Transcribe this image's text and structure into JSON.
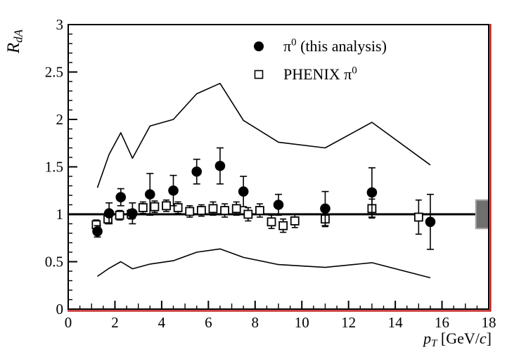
{
  "chart_data": {
    "type": "scatter",
    "title": "",
    "xlabel": "p_T [GeV/c]",
    "ylabel": "R_dA",
    "xlim": [
      0,
      18
    ],
    "ylim": [
      0,
      3
    ],
    "grid": false,
    "legend_position": "top-center",
    "axes": {
      "x": {
        "major_tick_values": [
          0,
          2,
          4,
          6,
          8,
          10,
          12,
          14,
          16,
          18
        ],
        "major_tick_labels": [
          "0",
          "2",
          "4",
          "6",
          "8",
          "10",
          "12",
          "14",
          "16",
          "18"
        ],
        "minor_step": 0.5,
        "medium_step": 1
      },
      "y": {
        "major_tick_values": [
          0,
          0.5,
          1,
          1.5,
          2,
          2.5,
          3
        ],
        "major_tick_labels": [
          "0",
          "0.5",
          "1",
          "1.5",
          "2",
          "2.5",
          "3"
        ],
        "minor_step": 0.1
      }
    },
    "series": [
      {
        "name": "pi0 (this analysis)",
        "marker": "filled-circle",
        "x": [
          1.25,
          1.75,
          2.25,
          2.75,
          3.5,
          4.5,
          5.5,
          6.5,
          7.5,
          9.0,
          11.0,
          13.0,
          15.5
        ],
        "y": [
          0.82,
          1.01,
          1.18,
          1.01,
          1.21,
          1.25,
          1.45,
          1.51,
          1.24,
          1.1,
          1.06,
          1.23,
          0.92
        ],
        "yerr": [
          0.06,
          0.11,
          0.09,
          0.11,
          0.22,
          0.16,
          0.13,
          0.19,
          0.16,
          0.11,
          0.18,
          0.26,
          0.29
        ]
      },
      {
        "name": "PHENIX pi0",
        "marker": "open-square",
        "x": [
          1.2,
          1.7,
          2.2,
          2.7,
          3.2,
          3.7,
          4.2,
          4.7,
          5.2,
          5.7,
          6.2,
          6.7,
          7.2,
          7.7,
          8.2,
          8.7,
          9.2,
          9.7,
          11.0,
          13.0,
          15.0
        ],
        "y": [
          0.89,
          0.95,
          0.99,
          1.0,
          1.07,
          1.08,
          1.09,
          1.07,
          1.03,
          1.04,
          1.06,
          1.04,
          1.06,
          1.0,
          1.04,
          0.92,
          0.88,
          0.93,
          0.95,
          1.06,
          0.97
        ],
        "yerr": [
          0.05,
          0.05,
          0.05,
          0.05,
          0.06,
          0.06,
          0.06,
          0.06,
          0.06,
          0.06,
          0.07,
          0.07,
          0.07,
          0.07,
          0.07,
          0.07,
          0.07,
          0.07,
          0.08,
          0.1,
          0.18
        ]
      }
    ],
    "curves": [
      {
        "name": "systematic-band-upper",
        "x": [
          1.25,
          1.75,
          2.25,
          2.75,
          3.5,
          4.5,
          5.5,
          6.5,
          7.5,
          9.0,
          11.0,
          13.0,
          15.5
        ],
        "y": [
          1.28,
          1.63,
          1.86,
          1.59,
          1.93,
          2.0,
          2.27,
          2.38,
          1.99,
          1.76,
          1.7,
          1.97,
          1.52
        ]
      },
      {
        "name": "systematic-band-lower",
        "x": [
          1.25,
          1.75,
          2.25,
          2.75,
          3.5,
          4.5,
          5.5,
          6.5,
          7.5,
          9.0,
          11.0,
          13.0,
          15.5
        ],
        "y": [
          0.345,
          0.43,
          0.5,
          0.425,
          0.475,
          0.51,
          0.6,
          0.635,
          0.545,
          0.47,
          0.44,
          0.49,
          0.33
        ]
      }
    ],
    "reference_line": {
      "y": 1.0,
      "x_start": 0,
      "x_end": 17.45
    },
    "normalization_box": {
      "x_min": 17.45,
      "x_max": 18.0,
      "y_min": 0.85,
      "y_max": 1.15
    }
  },
  "labels": {
    "y_title_parts": [
      {
        "t": "R",
        "italic": true
      },
      {
        "t": "dA",
        "sub": true,
        "italic": true
      }
    ],
    "x_title_parts": [
      {
        "t": "p",
        "italic": true
      },
      {
        "t": "T",
        "sub": true,
        "italic": true
      },
      {
        "t": " [GeV/"
      },
      {
        "t": "c",
        "italic": true
      },
      {
        "t": "]"
      }
    ]
  },
  "legend": {
    "items": [
      {
        "marker": "filled-circle",
        "parts": [
          {
            "t": "π"
          },
          {
            "t": "0",
            "sup": true
          },
          {
            "t": " (this analysis)"
          }
        ]
      },
      {
        "marker": "open-square",
        "parts": [
          {
            "t": "PHENIX π"
          },
          {
            "t": "0",
            "sup": true
          }
        ]
      }
    ]
  },
  "colors": {
    "frame": "#000000",
    "pad_border_red": "#bf0000",
    "marker_black": "#000000",
    "box_gray_fill": "#6f6f6f",
    "box_gray_stroke": "#a6a6a6",
    "background": "#ffffff"
  }
}
